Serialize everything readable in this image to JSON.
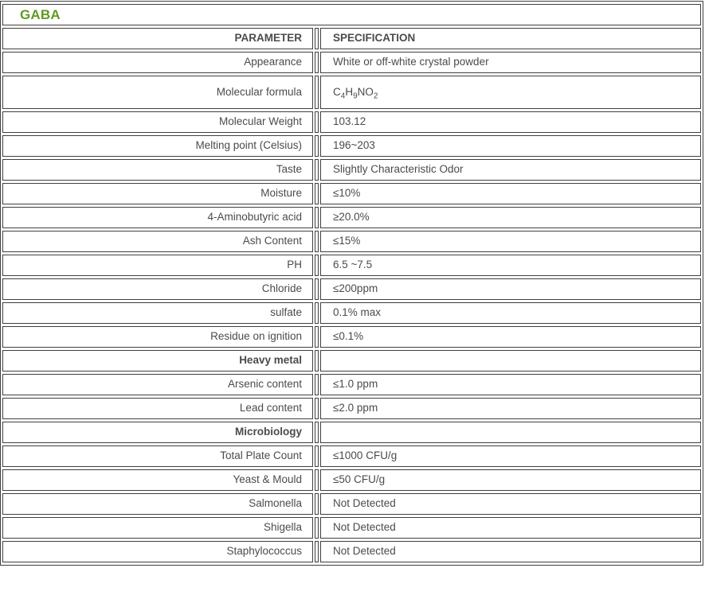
{
  "page": {
    "title": "GABA",
    "colors": {
      "title_green": "#5f9b1f",
      "border": "#3f3f3f",
      "body_text": "#4b4b4b",
      "header_text": "#3e3e3e"
    }
  },
  "table": {
    "column_headers": {
      "parameter": "PARAMETER",
      "specification": "SPECIFICATION"
    },
    "rows": [
      {
        "parameter": "Appearance",
        "specification": "White or off-white crystal powder"
      },
      {
        "parameter": "Molecular formula",
        "specification_parts": [
          {
            "text": "C"
          },
          {
            "text": "4",
            "sub": true
          },
          {
            "text": "H"
          },
          {
            "text": "9",
            "sub": true
          },
          {
            "text": "NO"
          },
          {
            "text": "2",
            "sub": true
          }
        ],
        "tall": true
      },
      {
        "parameter": "Molecular Weight",
        "specification": "103.12"
      },
      {
        "parameter": "Melting point (Celsius)",
        "specification": "196~203"
      },
      {
        "parameter": "Taste",
        "specification": "Slightly Characteristic Odor"
      },
      {
        "parameter": "Moisture",
        "specification": "≤10%"
      },
      {
        "parameter": "4-Aminobutyric acid",
        "specification": "≥20.0%"
      },
      {
        "parameter": "Ash Content",
        "specification": "≤15%"
      },
      {
        "parameter": "PH",
        "specification": "6.5 ~7.5"
      },
      {
        "parameter": "Chloride",
        "specification": "≤200ppm"
      },
      {
        "parameter": "sulfate",
        "specification": "0.1% max"
      },
      {
        "parameter": "Residue on ignition",
        "specification": "≤0.1%"
      },
      {
        "parameter": "Heavy metal",
        "specification": "",
        "section": true
      },
      {
        "parameter": "Arsenic content",
        "specification": "≤1.0 ppm"
      },
      {
        "parameter": "Lead content",
        "specification": "≤2.0 ppm"
      },
      {
        "parameter": "Microbiology",
        "specification": "",
        "section": true
      },
      {
        "parameter": "Total Plate Count",
        "specification": "≤1000 CFU/g"
      },
      {
        "parameter": "Yeast & Mould",
        "specification": "≤50 CFU/g"
      },
      {
        "parameter": "Salmonella",
        "specification": "Not Detected"
      },
      {
        "parameter": "Shigella",
        "specification": "Not Detected"
      },
      {
        "parameter": "Staphylococcus",
        "specification": "Not Detected"
      }
    ]
  }
}
